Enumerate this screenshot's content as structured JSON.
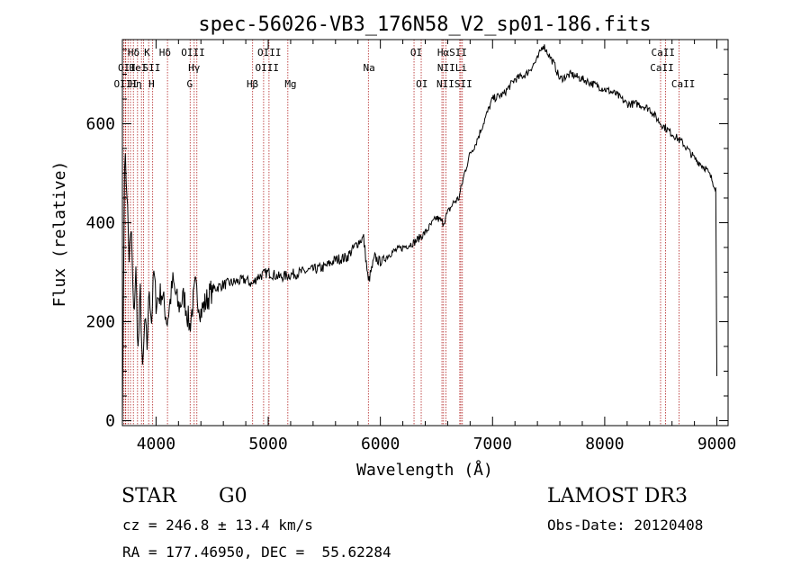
{
  "chart_data": {
    "type": "line",
    "title": "spec-56026-VB3_176N58_V2_sp01-186.fits",
    "xlabel": "Wavelength (Å)",
    "ylabel": "Flux (relative)",
    "xlim": [
      3700,
      9100
    ],
    "ylim": [
      -10,
      770
    ],
    "xticks": [
      4000,
      5000,
      6000,
      7000,
      8000,
      9000
    ],
    "yticks": [
      0,
      200,
      400,
      600
    ],
    "series": [
      {
        "name": "spectrum",
        "x": [
          3700,
          3720,
          3740,
          3760,
          3780,
          3800,
          3820,
          3840,
          3860,
          3880,
          3900,
          3920,
          3940,
          3960,
          3980,
          4000,
          4050,
          4100,
          4150,
          4200,
          4250,
          4300,
          4350,
          4400,
          4500,
          4600,
          4700,
          4800,
          4860,
          4900,
          5000,
          5100,
          5200,
          5300,
          5400,
          5500,
          5600,
          5700,
          5800,
          5850,
          5893,
          5950,
          6000,
          6100,
          6200,
          6300,
          6400,
          6500,
          6563,
          6600,
          6650,
          6700,
          6750,
          6800,
          6850,
          6900,
          6950,
          7000,
          7100,
          7200,
          7300,
          7400,
          7450,
          7500,
          7550,
          7600,
          7700,
          7800,
          7900,
          8000,
          8100,
          8200,
          8300,
          8400,
          8500,
          8600,
          8700,
          8800,
          8900,
          8950,
          8990,
          9000
        ],
        "y": [
          0,
          540,
          470,
          330,
          380,
          210,
          300,
          140,
          260,
          90,
          200,
          150,
          270,
          200,
          300,
          240,
          260,
          200,
          280,
          230,
          250,
          190,
          270,
          220,
          265,
          275,
          280,
          285,
          275,
          290,
          300,
          290,
          295,
          300,
          305,
          310,
          325,
          330,
          360,
          370,
          280,
          330,
          320,
          340,
          350,
          360,
          380,
          410,
          400,
          420,
          440,
          450,
          500,
          540,
          560,
          590,
          620,
          650,
          660,
          690,
          700,
          730,
          760,
          740,
          720,
          690,
          700,
          690,
          680,
          670,
          660,
          640,
          640,
          630,
          600,
          580,
          560,
          530,
          510,
          490,
          470,
          90
        ]
      }
    ],
    "lines_x": [
      3712,
      3726,
      3730,
      3750,
      3772,
      3798,
      3835,
      3870,
      3889,
      3934,
      3970,
      4102,
      4340,
      4304,
      4364,
      4861,
      4959,
      5007,
      5175,
      5893,
      6300,
      6364,
      6549,
      6563,
      6584,
      6717,
      6708,
      6731,
      8498,
      8542,
      8662
    ],
    "line_labels": [
      {
        "text": "Hδ",
        "x": 3800,
        "row": 1
      },
      {
        "text": "K",
        "x": 3920,
        "row": 1
      },
      {
        "text": "Hδ",
        "x": 4080,
        "row": 1
      },
      {
        "text": "OIII",
        "x": 4330,
        "row": 1
      },
      {
        "text": "OIII",
        "x": 5010,
        "row": 1
      },
      {
        "text": "OI",
        "x": 6320,
        "row": 1
      },
      {
        "text": "HαSII",
        "x": 6640,
        "row": 1
      },
      {
        "text": "CaII",
        "x": 8520,
        "row": 1
      },
      {
        "text": "OII",
        "x": 3740,
        "row": 2
      },
      {
        "text": "HeI",
        "x": 3840,
        "row": 2
      },
      {
        "text": "SII",
        "x": 3960,
        "row": 2
      },
      {
        "text": "Hγ",
        "x": 4340,
        "row": 2
      },
      {
        "text": "OIII",
        "x": 4990,
        "row": 2
      },
      {
        "text": "Na",
        "x": 5900,
        "row": 2
      },
      {
        "text": "NIILi",
        "x": 6640,
        "row": 2
      },
      {
        "text": "CaII",
        "x": 8510,
        "row": 2
      },
      {
        "text": "OIII",
        "x": 3730,
        "row": 3
      },
      {
        "text": "Hη",
        "x": 3820,
        "row": 3
      },
      {
        "text": "H",
        "x": 3960,
        "row": 3
      },
      {
        "text": "G",
        "x": 4300,
        "row": 3
      },
      {
        "text": "Hβ",
        "x": 4860,
        "row": 3
      },
      {
        "text": "Mg",
        "x": 5200,
        "row": 3
      },
      {
        "text": "OI",
        "x": 6370,
        "row": 3
      },
      {
        "text": "NIISII",
        "x": 6660,
        "row": 3
      },
      {
        "text": "CaII",
        "x": 8700,
        "row": 3
      }
    ]
  },
  "info": {
    "class_label": "STAR",
    "subclass": "G0",
    "survey": "LAMOST DR3",
    "cz": "cz = 246.8 ± 13.4 km/s",
    "obs_date": "Obs-Date: 20120408",
    "coords": "RA = 177.46950, DEC =  55.62284"
  },
  "colors": {
    "spectrum": "#000000",
    "lines": "#b22222"
  }
}
